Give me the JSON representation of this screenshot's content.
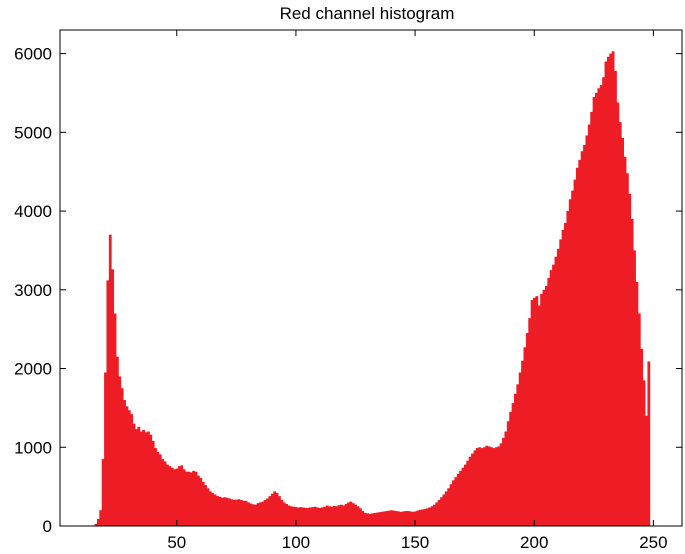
{
  "chart_data": {
    "type": "bar",
    "title": "Red channel histogram",
    "xlabel": "",
    "ylabel": "",
    "xlim": [
      1,
      262
    ],
    "ylim": [
      0,
      6300
    ],
    "xticks": [
      50,
      100,
      150,
      200,
      250
    ],
    "yticks": [
      0,
      1000,
      2000,
      3000,
      4000,
      5000,
      6000
    ],
    "xtick_labels": [
      "50",
      "100",
      "150",
      "200",
      "250"
    ],
    "ytick_labels": [
      "0",
      "1000",
      "2000",
      "3000",
      "4000",
      "5000",
      "6000"
    ],
    "grid": false,
    "bar_color": "#ee1c25",
    "series": [
      {
        "x_start": 0,
        "values": [
          0,
          0,
          0,
          0,
          0,
          0,
          0,
          0,
          0,
          0,
          0,
          0,
          0,
          0,
          0,
          5,
          25,
          90,
          200,
          850,
          1950,
          3120,
          3700,
          3260,
          2700,
          2150,
          1900,
          1750,
          1600,
          1520,
          1470,
          1420,
          1300,
          1230,
          1260,
          1200,
          1220,
          1190,
          1200,
          1160,
          1080,
          990,
          940,
          910,
          850,
          820,
          780,
          760,
          740,
          720,
          730,
          760,
          770,
          720,
          690,
          690,
          680,
          700,
          690,
          640,
          610,
          560,
          520,
          480,
          440,
          420,
          400,
          380,
          370,
          360,
          365,
          360,
          350,
          340,
          330,
          335,
          340,
          330,
          320,
          320,
          300,
          285,
          275,
          270,
          290,
          300,
          310,
          330,
          350,
          380,
          410,
          440,
          420,
          380,
          330,
          300,
          280,
          260,
          250,
          245,
          240,
          235,
          240,
          235,
          230,
          230,
          235,
          240,
          245,
          235,
          230,
          235,
          245,
          260,
          250,
          245,
          255,
          250,
          265,
          270,
          260,
          280,
          300,
          310,
          290,
          270,
          250,
          225,
          190,
          165,
          160,
          155,
          160,
          165,
          170,
          175,
          180,
          185,
          190,
          195,
          200,
          195,
          190,
          185,
          180,
          185,
          190,
          190,
          185,
          180,
          185,
          195,
          205,
          210,
          215,
          225,
          235,
          250,
          270,
          300,
          330,
          365,
          400,
          440,
          480,
          530,
          580,
          620,
          660,
          700,
          740,
          780,
          830,
          880,
          920,
          960,
          990,
          1000,
          990,
          1000,
          1020,
          1010,
          1000,
          990,
          1000,
          1010,
          1050,
          1120,
          1200,
          1330,
          1450,
          1560,
          1680,
          1800,
          1950,
          2100,
          2270,
          2450,
          2640,
          2870,
          2900,
          2920,
          2800,
          2950,
          3000,
          3050,
          3150,
          3250,
          3320,
          3420,
          3520,
          3640,
          3760,
          3850,
          4000,
          4150,
          4260,
          4400,
          4550,
          4650,
          4760,
          4840,
          4960,
          5100,
          5260,
          5450,
          5500,
          5560,
          5600,
          5700,
          5900,
          5960,
          6000,
          6030,
          5780,
          5380,
          5130,
          4930,
          4690,
          4480,
          4220,
          3900,
          3500,
          3100,
          2700,
          2250,
          1850,
          1400,
          2090
        ]
      }
    ]
  }
}
